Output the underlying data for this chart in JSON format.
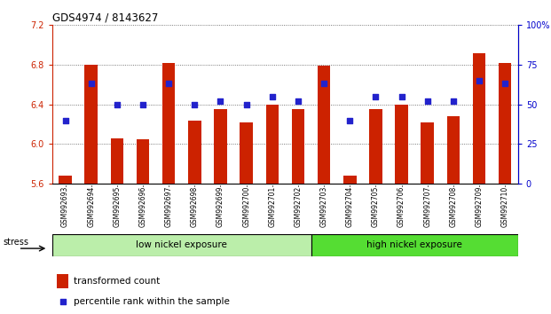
{
  "title": "GDS4974 / 8143627",
  "samples": [
    "GSM992693",
    "GSM992694",
    "GSM992695",
    "GSM992696",
    "GSM992697",
    "GSM992698",
    "GSM992699",
    "GSM992700",
    "GSM992701",
    "GSM992702",
    "GSM992703",
    "GSM992704",
    "GSM992705",
    "GSM992706",
    "GSM992707",
    "GSM992708",
    "GSM992709",
    "GSM992710"
  ],
  "red_values": [
    5.68,
    6.8,
    6.06,
    6.05,
    6.82,
    6.24,
    6.35,
    6.22,
    6.4,
    6.35,
    6.79,
    5.68,
    6.35,
    6.4,
    6.22,
    6.28,
    6.92,
    6.82
  ],
  "blue_percentile": [
    40,
    63,
    50,
    50,
    63,
    50,
    52,
    50,
    55,
    52,
    63,
    40,
    55,
    55,
    52,
    52,
    65,
    63
  ],
  "ylim_left": [
    5.6,
    7.2
  ],
  "ylim_right": [
    0,
    100
  ],
  "yticks_left": [
    5.6,
    6.0,
    6.4,
    6.8,
    7.2
  ],
  "yticks_right": [
    0,
    25,
    50,
    75,
    100
  ],
  "group1_label": "low nickel exposure",
  "group2_label": "high nickel exposure",
  "group1_count": 10,
  "group2_count": 8,
  "stress_label": "stress",
  "legend1": "transformed count",
  "legend2": "percentile rank within the sample",
  "bar_color": "#cc2200",
  "dot_color": "#2222cc",
  "group1_color": "#bbeeaa",
  "group2_color": "#55dd33",
  "bg_color": "#ffffff",
  "title_color": "#000000",
  "left_axis_color": "#cc2200",
  "right_axis_color": "#0000cc",
  "plot_bg": "#ffffff"
}
